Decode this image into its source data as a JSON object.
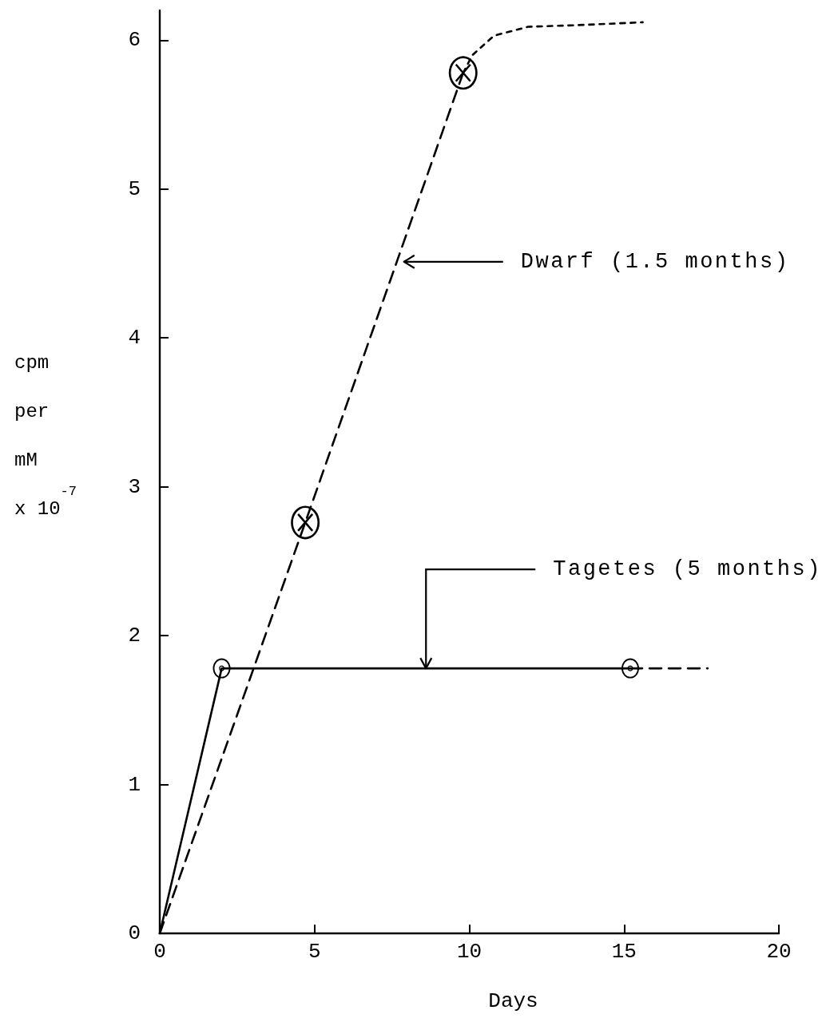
{
  "chart_data": {
    "type": "line",
    "xlabel": "Days",
    "ylabel": "cpm\nper\nmM\nx 10$^{-7}$",
    "xlim": [
      0,
      20
    ],
    "xticks": [
      0,
      5,
      10,
      15,
      20
    ],
    "ylim": [
      0,
      6.2
    ],
    "yticks": [
      0,
      1,
      2,
      3,
      4,
      5,
      6
    ],
    "annotations": [
      "Dwarf (1.5 months)",
      {
        "text": "Tagetes (5 months)",
        "x": 8.6,
        "y": 1.78
      }
    ],
    "series": [
      {
        "color": "#000000",
        "x": [
          0,
          4.7,
          9.8
        ],
        "values": [
          0,
          2.76,
          5.78
        ],
        "line_style": "dashed"
      },
      {
        "type": "scatter",
        "color": "#000000",
        "x": [
          4.7,
          9.8
        ],
        "values": [
          2.76,
          5.78
        ],
        "marker": "cross"
      },
      {
        "color": "#000000",
        "x": [
          9.8,
          10.1,
          10.8,
          11.9,
          13.4,
          15.6
        ],
        "values": [
          5.78,
          5.9,
          6.03,
          6.09,
          6.1,
          6.12
        ],
        "line_style": "dotted"
      },
      {
        "color": "#000000",
        "x": [
          0,
          2.0,
          15.2
        ],
        "values": [
          0,
          1.78,
          1.78
        ],
        "line_style": "solid"
      },
      {
        "type": "scatter",
        "color": "#000000",
        "x": [
          2.0,
          15.2
        ],
        "values": [
          1.78,
          1.78
        ],
        "marker": "circle"
      },
      {
        "color": "#000000",
        "x": [
          15.2,
          17.7
        ],
        "values": [
          1.78,
          1.78
        ],
        "line_style": "dashed"
      }
    ]
  }
}
